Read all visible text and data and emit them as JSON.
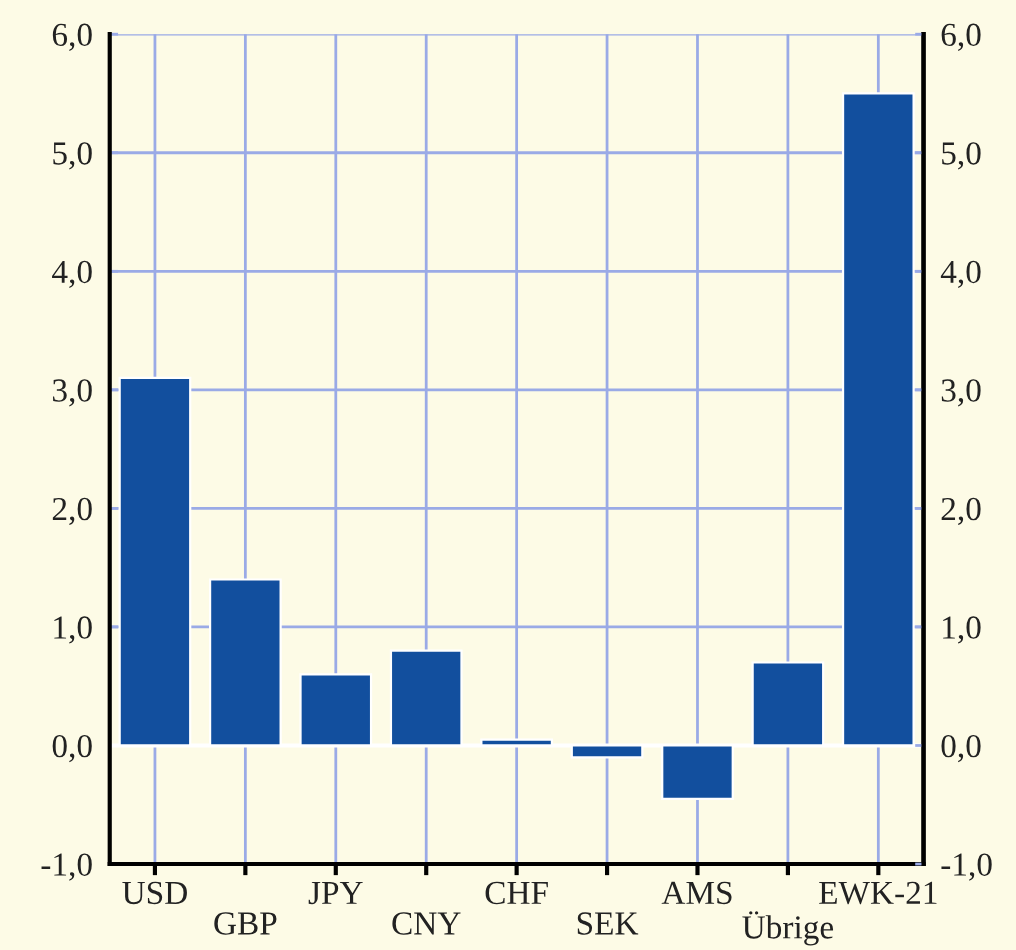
{
  "chart_data": {
    "type": "bar",
    "categories": [
      "USD",
      "GBP",
      "JPY",
      "CNY",
      "CHF",
      "SEK",
      "AMS",
      "Übrige",
      "EWK-21"
    ],
    "values": [
      3.1,
      1.4,
      0.6,
      0.8,
      0.05,
      -0.1,
      -0.45,
      0.7,
      5.5
    ],
    "color": "#124f9e",
    "ylim": [
      -1,
      6
    ],
    "yticks": [
      {
        "value": -1,
        "label": "-1,0"
      },
      {
        "value": 0,
        "label": "0,0"
      },
      {
        "value": 1,
        "label": "1,0"
      },
      {
        "value": 2,
        "label": "2,0"
      },
      {
        "value": 3,
        "label": "3,0"
      },
      {
        "value": 4,
        "label": "4,0"
      },
      {
        "value": 5,
        "label": "5,0"
      },
      {
        "value": 6,
        "label": "6,0"
      }
    ],
    "y2lim": [
      -1,
      6
    ],
    "y2ticks": [
      {
        "value": -1,
        "label": "-1,0"
      },
      {
        "value": 0,
        "label": "0,0"
      },
      {
        "value": 1,
        "label": "1,0"
      },
      {
        "value": 2,
        "label": "2,0"
      },
      {
        "value": 3,
        "label": "3,0"
      },
      {
        "value": 4,
        "label": "4,0"
      },
      {
        "value": 5,
        "label": "5,0"
      },
      {
        "value": 6,
        "label": "6,0"
      }
    ],
    "ref_lines": [
      {
        "axis": "y",
        "value": 0,
        "color": "#ffffff"
      }
    ],
    "grid": true,
    "legend": false
  }
}
